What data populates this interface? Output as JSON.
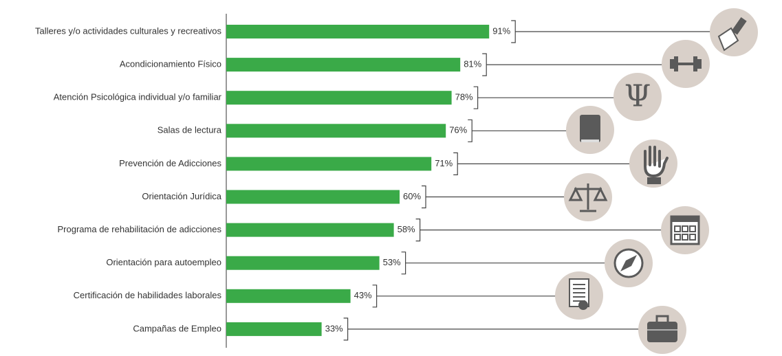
{
  "chart_data": {
    "type": "bar",
    "orientation": "horizontal",
    "categories": [
      "Talleres y/o actividades culturales y recreativos",
      "Acondicionamiento Físico",
      "Atención Psicológica individual y/o familiar",
      "Salas de lectura",
      "Prevención de Adicciones",
      "Orientación Jurídica",
      "Programa de rehabilitación de adicciones",
      "Orientación para autoempleo",
      "Certificación de habilidades laborales",
      "Campañas de Empleo"
    ],
    "values": [
      91,
      81,
      78,
      76,
      71,
      60,
      58,
      53,
      43,
      33
    ],
    "value_labels": [
      "91%",
      "81%",
      "78%",
      "76%",
      "71%",
      "60%",
      "58%",
      "53%",
      "43%",
      "33%"
    ],
    "color": "#3aaa48"
  }
}
